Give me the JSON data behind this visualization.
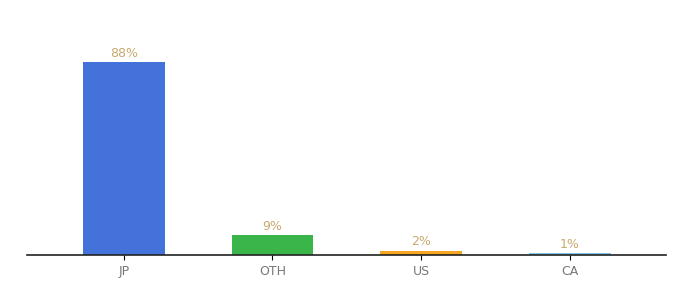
{
  "categories": [
    "JP",
    "OTH",
    "US",
    "CA"
  ],
  "values": [
    88,
    9,
    2,
    1
  ],
  "labels": [
    "88%",
    "9%",
    "2%",
    "1%"
  ],
  "bar_colors": [
    "#4472db",
    "#3ab54a",
    "#f5a623",
    "#7ec8e3"
  ],
  "title_fontsize": 9,
  "label_fontsize": 9,
  "tick_fontsize": 9,
  "label_color": "#c8a96e",
  "background_color": "#ffffff",
  "ylim": [
    0,
    100
  ],
  "bar_width": 0.55
}
